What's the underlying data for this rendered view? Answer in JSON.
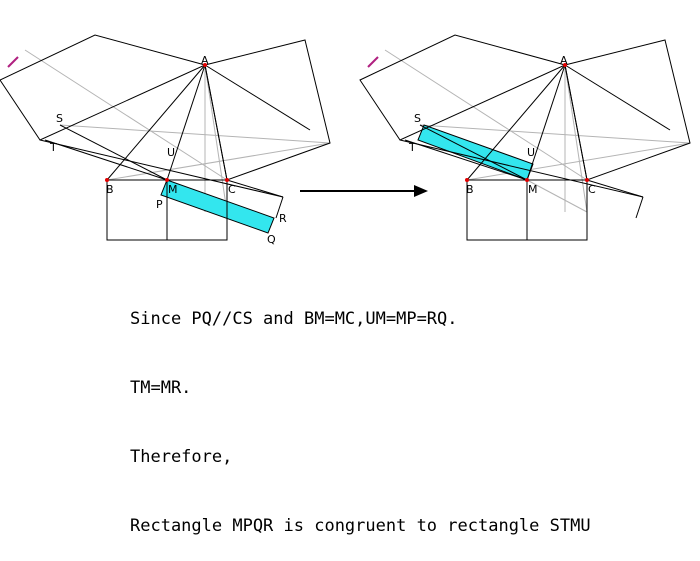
{
  "colors": {
    "line": "#000000",
    "construction": "#b4b4b4",
    "highlight": "#33e6ee",
    "point": "#e00000",
    "accent": "#b02080",
    "arrow": "#000000"
  },
  "figures": {
    "left": {
      "labels": {
        "A": "A",
        "S": "S",
        "T": "T",
        "U": "U",
        "B": "B",
        "M": "M",
        "C": "C",
        "P": "P",
        "R": "R",
        "Q": "Q"
      },
      "highlighted_rectangle": "MPQR"
    },
    "right": {
      "labels": {
        "A": "A",
        "S": "S",
        "T": "T",
        "U": "U",
        "B": "B",
        "M": "M",
        "C": "C"
      },
      "highlighted_rectangle": "STMU"
    }
  },
  "caption": {
    "line1": "Since PQ//CS and BM=MC,UM=MP=RQ.",
    "line2": "TM=MR.",
    "line3": "Therefore,",
    "line4": "Rectangle MPQR is congruent to rectangle STMU"
  }
}
